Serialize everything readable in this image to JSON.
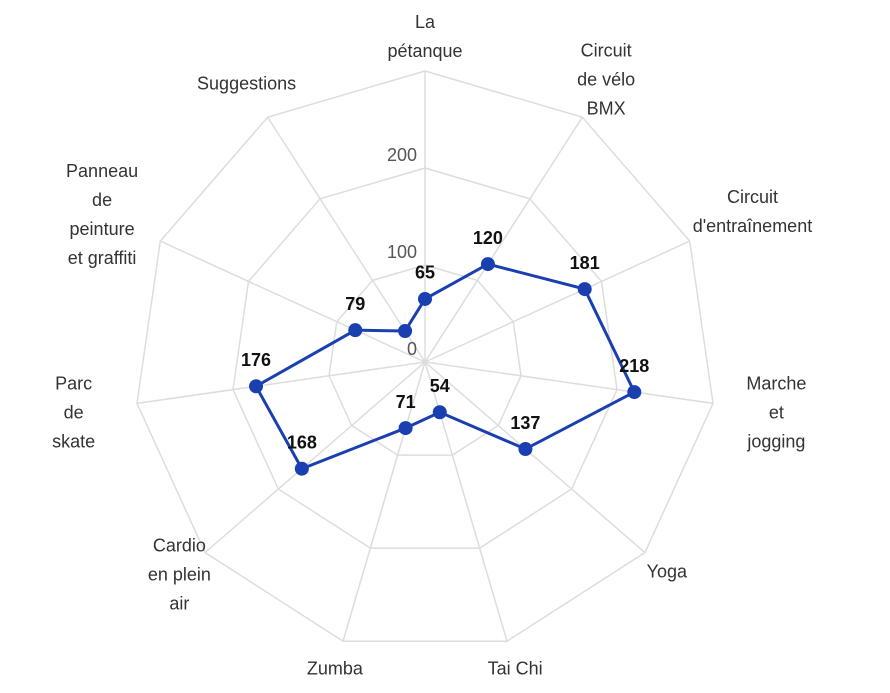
{
  "chart_data": {
    "type": "radar",
    "categories": [
      "La\npétanque",
      "Circuit\nde vélo\nBMX",
      "Circuit\nd'entraînement",
      "Marche\net\njogging",
      "Yoga",
      "Tai Chi",
      "Zumba",
      "Cardio\nen plein\nair",
      "Parc\nde\nskate",
      "Panneau\nde\npeinture\net graffiti",
      "Suggestions"
    ],
    "series": [
      {
        "color": "#1a3fb0",
        "values": [
          65,
          120,
          181,
          218,
          137,
          54,
          71,
          168,
          176,
          79,
          38
        ],
        "value_labels": [
          "65",
          "120",
          "181",
          "218",
          "137",
          "54",
          "71",
          "168",
          "176",
          "79",
          null
        ]
      }
    ],
    "ylim": [
      0,
      300
    ],
    "yticks": [
      0,
      100,
      200
    ],
    "grid": true
  }
}
